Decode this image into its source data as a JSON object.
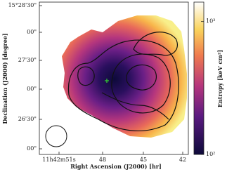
{
  "chart_data": {
    "type": "image",
    "xlabel": "Right Ascension (J2000) [hr]",
    "ylabel": "Declination (J2000) [degree]",
    "xticks": [
      "11h42m51s",
      "48",
      "45",
      "42"
    ],
    "yticks": [
      "15°28'30\"",
      "00\"",
      "27'30\"",
      "00\"",
      "26'30\"",
      "00\""
    ],
    "colorbar": {
      "label": "Entropy [keV cm²]",
      "log": true,
      "lim": [
        100,
        1400
      ],
      "ticks": [
        {
          "value": 100,
          "label": "10²"
        },
        {
          "value": 1000,
          "label": "10³"
        }
      ]
    }
  }
}
